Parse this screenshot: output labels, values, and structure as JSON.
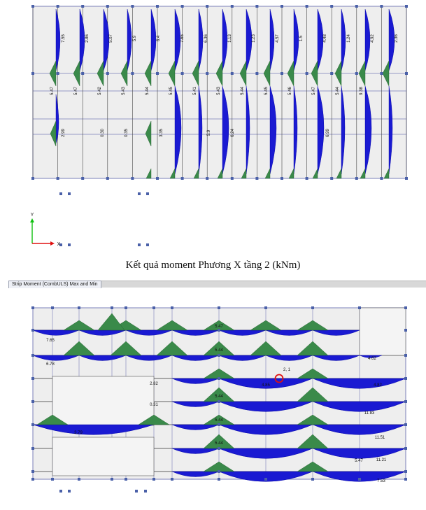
{
  "colors": {
    "panel_fill": "#eeeeee",
    "grid_line": "#7a7fb8",
    "node": "#4a60a8",
    "positive_moment": "#1a1ad2",
    "negative_moment": "#3a8a4a",
    "axis_x": "#e01010",
    "axis_y": "#10c010",
    "selection": "#e01010"
  },
  "caption": "Kết quả moment Phương X tầng 2 (kNm)",
  "window_tab": "Strip Moment (CombULS) Max and Min",
  "axis_labels": {
    "x": "X",
    "y": "Y"
  },
  "top_diagram": {
    "upper_labels": [
      "7.55",
      "2.86",
      "5.07",
      "5.9",
      "6.4",
      "7.65",
      "6.36",
      "1.13",
      "1.23",
      "4.57",
      "1.5",
      "4.48",
      "1.24",
      "4.92",
      "2.36"
    ],
    "mid_labels": [
      "5.47",
      "5.47",
      "5.42",
      "5.43",
      "5.44",
      "5.45",
      "5.41",
      "5.43",
      "5.44",
      "5.45",
      "5.46",
      "5.47",
      "5.44",
      "9.38"
    ],
    "lower_labels": [
      "2.99",
      "0.30",
      "0.35",
      "3.35",
      "5.9",
      "6.24",
      "6.99"
    ]
  },
  "bottom_diagram": {
    "labels": [
      "7.65",
      "6.78",
      "2.82",
      "4.85",
      "4.82",
      "0.31",
      "11.83",
      "3.79",
      "11.51",
      "11.21",
      "7.53",
      "2, 1",
      "5.47",
      "4.62",
      "5.44",
      "5.44",
      "5.44",
      "5.44",
      "5.47"
    ]
  }
}
